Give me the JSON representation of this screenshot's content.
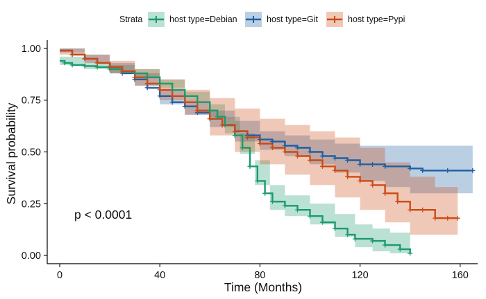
{
  "chart_data": {
    "type": "line",
    "subtype": "kaplan-meier",
    "title": "",
    "xlabel": "Time (Months)",
    "ylabel": "Survival probability",
    "xlim": [
      -5,
      167
    ],
    "ylim": [
      -0.04,
      1.04
    ],
    "xticks": [
      0,
      40,
      80,
      120,
      160
    ],
    "yticks": [
      0.0,
      0.25,
      0.5,
      0.75,
      1.0
    ],
    "ytick_labels": [
      "0.00",
      "0.25",
      "0.50",
      "0.75",
      "1.00"
    ],
    "grid": false,
    "legend": {
      "title": "Strata",
      "placement": "top",
      "entries": [
        "host type=Debian",
        "host type=Git",
        "host type=Pypi"
      ]
    },
    "annotation": "p < 0.0001",
    "series": [
      {
        "name": "host type=Debian",
        "color": "#1a9a6c",
        "points": [
          [
            0,
            0.94
          ],
          [
            2,
            0.93
          ],
          [
            5,
            0.92
          ],
          [
            10,
            0.915
          ],
          [
            15,
            0.91
          ],
          [
            20,
            0.9
          ],
          [
            25,
            0.89
          ],
          [
            30,
            0.88
          ],
          [
            35,
            0.86
          ],
          [
            40,
            0.83
          ],
          [
            45,
            0.8
          ],
          [
            50,
            0.77
          ],
          [
            55,
            0.74
          ],
          [
            60,
            0.7
          ],
          [
            63,
            0.67
          ],
          [
            66,
            0.63
          ],
          [
            70,
            0.58
          ],
          [
            73,
            0.52
          ],
          [
            76,
            0.43
          ],
          [
            79,
            0.36
          ],
          [
            82,
            0.3
          ],
          [
            85,
            0.26
          ],
          [
            90,
            0.24
          ],
          [
            95,
            0.22
          ],
          [
            100,
            0.19
          ],
          [
            105,
            0.16
          ],
          [
            110,
            0.13
          ],
          [
            115,
            0.1
          ],
          [
            118,
            0.08
          ],
          [
            125,
            0.07
          ],
          [
            130,
            0.05
          ],
          [
            136,
            0.03
          ],
          [
            140,
            0.01
          ]
        ],
        "ci_upper": [
          [
            0,
            0.96
          ],
          [
            10,
            0.93
          ],
          [
            20,
            0.92
          ],
          [
            30,
            0.9
          ],
          [
            40,
            0.85
          ],
          [
            50,
            0.79
          ],
          [
            60,
            0.73
          ],
          [
            66,
            0.67
          ],
          [
            72,
            0.59
          ],
          [
            78,
            0.46
          ],
          [
            84,
            0.34
          ],
          [
            90,
            0.29
          ],
          [
            100,
            0.25
          ],
          [
            110,
            0.2
          ],
          [
            118,
            0.15
          ],
          [
            125,
            0.13
          ],
          [
            132,
            0.11
          ],
          [
            140,
            0.07
          ]
        ],
        "ci_lower": [
          [
            0,
            0.92
          ],
          [
            10,
            0.9
          ],
          [
            20,
            0.88
          ],
          [
            30,
            0.86
          ],
          [
            40,
            0.81
          ],
          [
            50,
            0.75
          ],
          [
            60,
            0.67
          ],
          [
            66,
            0.59
          ],
          [
            72,
            0.49
          ],
          [
            78,
            0.34
          ],
          [
            84,
            0.22
          ],
          [
            90,
            0.19
          ],
          [
            100,
            0.15
          ],
          [
            110,
            0.09
          ],
          [
            118,
            0.04
          ],
          [
            125,
            0.02
          ],
          [
            132,
            0.01
          ],
          [
            140,
            0.0
          ]
        ]
      },
      {
        "name": "host type=Git",
        "color": "#1e5fa3",
        "points": [
          [
            0,
            0.99
          ],
          [
            5,
            0.97
          ],
          [
            10,
            0.95
          ],
          [
            15,
            0.93
          ],
          [
            20,
            0.91
          ],
          [
            25,
            0.88
          ],
          [
            30,
            0.85
          ],
          [
            35,
            0.81
          ],
          [
            40,
            0.77
          ],
          [
            45,
            0.74
          ],
          [
            50,
            0.72
          ],
          [
            55,
            0.69
          ],
          [
            60,
            0.66
          ],
          [
            65,
            0.63
          ],
          [
            70,
            0.6
          ],
          [
            75,
            0.58
          ],
          [
            80,
            0.56
          ],
          [
            85,
            0.55
          ],
          [
            90,
            0.53
          ],
          [
            95,
            0.52
          ],
          [
            100,
            0.5
          ],
          [
            105,
            0.48
          ],
          [
            110,
            0.47
          ],
          [
            115,
            0.46
          ],
          [
            120,
            0.44
          ],
          [
            125,
            0.44
          ],
          [
            130,
            0.43
          ],
          [
            140,
            0.42
          ],
          [
            145,
            0.41
          ],
          [
            155,
            0.41
          ],
          [
            165,
            0.41
          ]
        ],
        "ci_upper": [
          [
            0,
            1.0
          ],
          [
            10,
            0.97
          ],
          [
            20,
            0.93
          ],
          [
            30,
            0.88
          ],
          [
            40,
            0.8
          ],
          [
            50,
            0.75
          ],
          [
            60,
            0.7
          ],
          [
            70,
            0.65
          ],
          [
            80,
            0.6
          ],
          [
            90,
            0.58
          ],
          [
            100,
            0.56
          ],
          [
            110,
            0.54
          ],
          [
            120,
            0.53
          ],
          [
            130,
            0.53
          ],
          [
            140,
            0.53
          ],
          [
            150,
            0.53
          ],
          [
            165,
            0.53
          ]
        ],
        "ci_lower": [
          [
            0,
            0.98
          ],
          [
            10,
            0.93
          ],
          [
            20,
            0.88
          ],
          [
            30,
            0.82
          ],
          [
            40,
            0.73
          ],
          [
            50,
            0.68
          ],
          [
            60,
            0.62
          ],
          [
            70,
            0.55
          ],
          [
            80,
            0.51
          ],
          [
            90,
            0.48
          ],
          [
            100,
            0.44
          ],
          [
            110,
            0.4
          ],
          [
            120,
            0.36
          ],
          [
            130,
            0.33
          ],
          [
            140,
            0.3
          ],
          [
            150,
            0.3
          ],
          [
            165,
            0.3
          ]
        ]
      },
      {
        "name": "host type=Pypi",
        "color": "#cc4a12",
        "points": [
          [
            0,
            0.99
          ],
          [
            5,
            0.97
          ],
          [
            10,
            0.95
          ],
          [
            15,
            0.93
          ],
          [
            20,
            0.91
          ],
          [
            25,
            0.89
          ],
          [
            30,
            0.86
          ],
          [
            35,
            0.83
          ],
          [
            40,
            0.8
          ],
          [
            45,
            0.77
          ],
          [
            50,
            0.74
          ],
          [
            55,
            0.7
          ],
          [
            60,
            0.66
          ],
          [
            65,
            0.63
          ],
          [
            70,
            0.6
          ],
          [
            75,
            0.57
          ],
          [
            80,
            0.54
          ],
          [
            85,
            0.52
          ],
          [
            90,
            0.5
          ],
          [
            95,
            0.48
          ],
          [
            100,
            0.46
          ],
          [
            105,
            0.43
          ],
          [
            110,
            0.41
          ],
          [
            115,
            0.38
          ],
          [
            120,
            0.36
          ],
          [
            125,
            0.34
          ],
          [
            130,
            0.3
          ],
          [
            135,
            0.26
          ],
          [
            140,
            0.22
          ],
          [
            145,
            0.22
          ],
          [
            150,
            0.18
          ],
          [
            155,
            0.18
          ],
          [
            159,
            0.18
          ]
        ],
        "ci_upper": [
          [
            0,
            1.0
          ],
          [
            10,
            0.97
          ],
          [
            20,
            0.94
          ],
          [
            30,
            0.9
          ],
          [
            40,
            0.85
          ],
          [
            50,
            0.8
          ],
          [
            60,
            0.76
          ],
          [
            70,
            0.71
          ],
          [
            80,
            0.66
          ],
          [
            90,
            0.63
          ],
          [
            100,
            0.6
          ],
          [
            110,
            0.57
          ],
          [
            120,
            0.52
          ],
          [
            130,
            0.45
          ],
          [
            140,
            0.38
          ],
          [
            150,
            0.33
          ],
          [
            159,
            0.33
          ]
        ],
        "ci_lower": [
          [
            0,
            0.97
          ],
          [
            10,
            0.93
          ],
          [
            20,
            0.88
          ],
          [
            30,
            0.82
          ],
          [
            40,
            0.75
          ],
          [
            50,
            0.68
          ],
          [
            60,
            0.58
          ],
          [
            70,
            0.5
          ],
          [
            80,
            0.44
          ],
          [
            90,
            0.39
          ],
          [
            100,
            0.34
          ],
          [
            110,
            0.28
          ],
          [
            120,
            0.22
          ],
          [
            130,
            0.16
          ],
          [
            140,
            0.1
          ],
          [
            150,
            0.1
          ],
          [
            159,
            0.1
          ]
        ]
      }
    ]
  }
}
